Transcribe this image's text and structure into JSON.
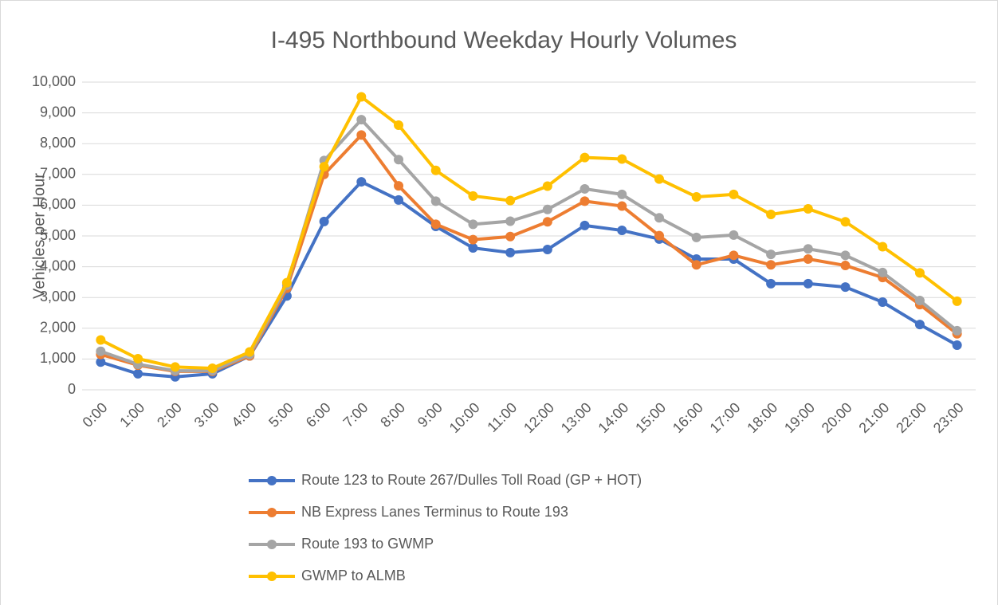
{
  "chart_data": {
    "type": "line",
    "title": "I-495 Northbound Weekday Hourly Volumes",
    "y_label": "Vehicles per Hour",
    "categories": [
      "0:00",
      "1:00",
      "2:00",
      "3:00",
      "4:00",
      "5:00",
      "6:00",
      "7:00",
      "8:00",
      "9:00",
      "10:00",
      "11:00",
      "12:00",
      "13:00",
      "14:00",
      "15:00",
      "16:00",
      "17:00",
      "18:00",
      "19:00",
      "20:00",
      "21:00",
      "22:00",
      "23:00"
    ],
    "series": [
      {
        "name": "Route 123 to Route 267/Dulles Toll Road (GP + HOT)",
        "color": "#4472c4",
        "values": [
          900,
          520,
          420,
          520,
          1100,
          3050,
          5470,
          6760,
          6170,
          5310,
          4610,
          4460,
          4560,
          5340,
          5180,
          4900,
          4250,
          4250,
          3450,
          3450,
          3340,
          2850,
          2120,
          1450
        ]
      },
      {
        "name": "NB Express Lanes Terminus to Route 193",
        "color": "#ed7d31",
        "values": [
          1150,
          800,
          600,
          600,
          1100,
          3300,
          7000,
          8280,
          6630,
          5380,
          4880,
          4980,
          5460,
          6130,
          5970,
          5010,
          4060,
          4370,
          4060,
          4250,
          4040,
          3650,
          2770,
          1820
        ]
      },
      {
        "name": "Route 193 to GWMP",
        "color": "#a5a5a5",
        "values": [
          1250,
          830,
          620,
          620,
          1150,
          3400,
          7450,
          8780,
          7480,
          6130,
          5380,
          5480,
          5860,
          6530,
          6350,
          5590,
          4950,
          5030,
          4400,
          4580,
          4370,
          3810,
          2900,
          1920
        ]
      },
      {
        "name": "GWMP to ALMB",
        "color": "#ffc000",
        "values": [
          1620,
          1010,
          740,
          700,
          1230,
          3480,
          7250,
          9520,
          8600,
          7130,
          6300,
          6150,
          6620,
          7550,
          7500,
          6850,
          6270,
          6350,
          5700,
          5880,
          5460,
          4650,
          3800,
          2880
        ]
      }
    ],
    "ylim": [
      0,
      10000
    ],
    "yticks": [
      0,
      {
        "value": 1000,
        "label": "1,000"
      },
      {
        "value": 2000,
        "label": "2,000"
      },
      {
        "value": 3000,
        "label": "3,000"
      },
      {
        "value": 4000,
        "label": "4,000"
      },
      {
        "value": 5000,
        "label": "5,000"
      },
      {
        "value": 6000,
        "label": "6,000"
      },
      {
        "value": 7000,
        "label": "7,000"
      },
      {
        "value": 8000,
        "label": "8,000"
      },
      {
        "value": 9000,
        "label": "9,000"
      },
      {
        "value": 10000,
        "label": "10,000"
      }
    ],
    "grid": true,
    "legend": "bottom"
  }
}
